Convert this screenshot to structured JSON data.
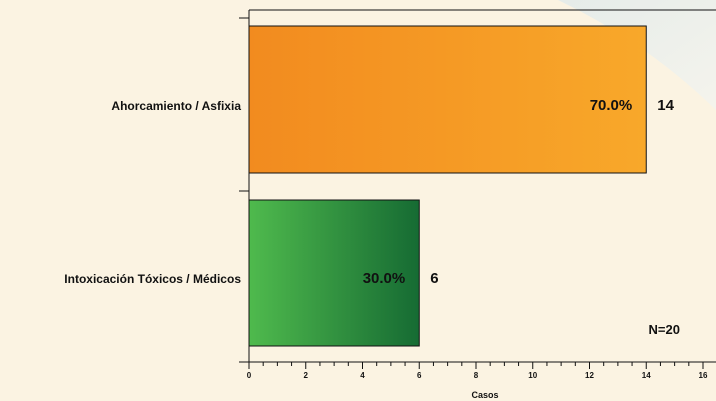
{
  "chart_data": {
    "type": "bar",
    "orientation": "horizontal",
    "categories": [
      "Ahorcamiento / Asfixia",
      "Intoxicación Tóxicos / Médicos"
    ],
    "values": [
      14,
      6
    ],
    "percent_labels": [
      "70.0%",
      "30.0%"
    ],
    "value_labels": [
      "14",
      "6"
    ],
    "xlabel": "Casos",
    "ylabel": "",
    "xlim": [
      0,
      16
    ],
    "x_ticks": [
      "0",
      "2",
      "4",
      "6",
      "8",
      "10",
      "12",
      "14",
      "16"
    ],
    "annotation": "N=20",
    "grid": false,
    "colors": {
      "bar_1": [
        "#F28B1F",
        "#F8A82A"
      ],
      "bar_2": [
        "#4FBA4D",
        "#166B33"
      ],
      "background": "#FBF3E2",
      "axis": "#111111"
    }
  }
}
